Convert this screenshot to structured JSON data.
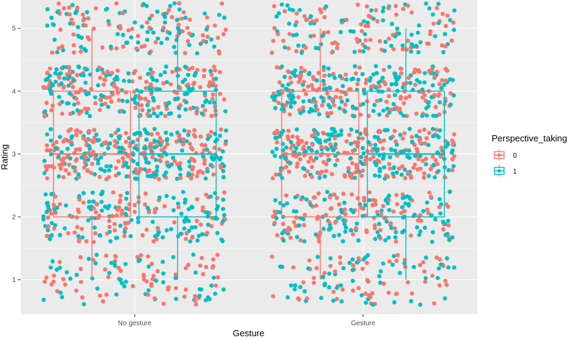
{
  "chart_data": {
    "type": "scatter",
    "subtype": "jittered points with boxplot overlay",
    "xlabel": "Gesture",
    "ylabel": "Rating",
    "categories": [
      "No gesture",
      "Gesture"
    ],
    "y_ticks": [
      1,
      2,
      3,
      4,
      5
    ],
    "ylim": [
      0.45,
      5.45
    ],
    "legend": {
      "title": "Perspective_taking",
      "position": "right",
      "entries": [
        {
          "label": "0",
          "color": "#F8766D"
        },
        {
          "label": "1",
          "color": "#00BFC4"
        }
      ]
    },
    "grid": true,
    "background": "#EBEBEB",
    "jitter": {
      "width": 0.4,
      "height": 0.4,
      "approx_points_per_rating": [
        120,
        220,
        350,
        300,
        160
      ]
    },
    "boxplots": [
      {
        "category": "No gesture",
        "series": "0",
        "min": 1,
        "q1": 2,
        "median": 3,
        "q3": 4,
        "max": 5
      },
      {
        "category": "No gesture",
        "series": "1",
        "min": 1,
        "q1": 2,
        "median": 3,
        "q3": 4,
        "max": 5
      },
      {
        "category": "Gesture",
        "series": "0",
        "min": 1,
        "q1": 2,
        "median": 3,
        "q3": 4,
        "max": 5
      },
      {
        "category": "Gesture",
        "series": "1",
        "min": 1,
        "q1": 2,
        "median": 3,
        "q3": 4,
        "max": 5
      }
    ],
    "series": [
      {
        "name": "0",
        "color": "#F8766D"
      },
      {
        "name": "1",
        "color": "#00BFC4"
      }
    ]
  }
}
